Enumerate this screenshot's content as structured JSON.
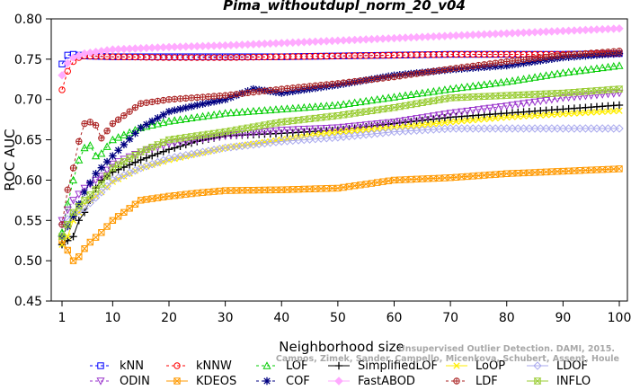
{
  "chart_data": {
    "type": "line",
    "title": "Pima_withoutdupl_norm_20_v04",
    "xlabel": "Neighborhood size",
    "ylabel": "ROC AUC",
    "xlim": [
      1,
      100
    ],
    "ylim": [
      0.45,
      0.8
    ],
    "x_ticks": [
      "1",
      "10",
      "20",
      "30",
      "40",
      "50",
      "60",
      "70",
      "80",
      "90",
      "100"
    ],
    "y_ticks": [
      "0.45",
      "0.50",
      "0.55",
      "0.60",
      "0.65",
      "0.70",
      "0.75",
      "0.80"
    ],
    "grid": false,
    "legend_position": "bottom",
    "series": [
      {
        "name": "kNN",
        "color": "#0000ff",
        "marker": "square",
        "dash": "3,3",
        "anchors": [
          [
            1,
            0.744
          ],
          [
            2,
            0.755
          ],
          [
            3,
            0.756
          ],
          [
            5,
            0.754
          ],
          [
            10,
            0.753
          ],
          [
            20,
            0.753
          ],
          [
            30,
            0.753
          ],
          [
            40,
            0.753
          ],
          [
            50,
            0.754
          ],
          [
            60,
            0.755
          ],
          [
            70,
            0.756
          ],
          [
            80,
            0.756
          ],
          [
            90,
            0.756
          ],
          [
            100,
            0.757
          ]
        ]
      },
      {
        "name": "kNNW",
        "color": "#ff0000",
        "marker": "circle",
        "dash": "3,3",
        "anchors": [
          [
            1,
            0.712
          ],
          [
            2,
            0.735
          ],
          [
            3,
            0.747
          ],
          [
            4,
            0.752
          ],
          [
            5,
            0.754
          ],
          [
            10,
            0.753
          ],
          [
            20,
            0.752
          ],
          [
            30,
            0.752
          ],
          [
            40,
            0.753
          ],
          [
            50,
            0.754
          ],
          [
            60,
            0.755
          ],
          [
            70,
            0.756
          ],
          [
            80,
            0.756
          ],
          [
            90,
            0.756
          ],
          [
            100,
            0.757
          ]
        ]
      },
      {
        "name": "LOF",
        "color": "#00cc00",
        "marker": "triangle",
        "dash": "3,3",
        "anchors": [
          [
            1,
            0.535
          ],
          [
            2,
            0.57
          ],
          [
            3,
            0.6
          ],
          [
            4,
            0.625
          ],
          [
            5,
            0.64
          ],
          [
            6,
            0.643
          ],
          [
            7,
            0.63
          ],
          [
            8,
            0.633
          ],
          [
            10,
            0.65
          ],
          [
            15,
            0.665
          ],
          [
            20,
            0.673
          ],
          [
            30,
            0.683
          ],
          [
            40,
            0.688
          ],
          [
            50,
            0.693
          ],
          [
            60,
            0.703
          ],
          [
            70,
            0.713
          ],
          [
            80,
            0.722
          ],
          [
            90,
            0.733
          ],
          [
            100,
            0.742
          ]
        ]
      },
      {
        "name": "SimplifiedLOF",
        "color": "#000000",
        "marker": "plus",
        "dash": "",
        "anchors": [
          [
            1,
            0.52
          ],
          [
            2,
            0.525
          ],
          [
            3,
            0.53
          ],
          [
            4,
            0.55
          ],
          [
            5,
            0.56
          ],
          [
            6,
            0.575
          ],
          [
            7,
            0.59
          ],
          [
            8,
            0.6
          ],
          [
            10,
            0.61
          ],
          [
            15,
            0.625
          ],
          [
            20,
            0.638
          ],
          [
            25,
            0.648
          ],
          [
            30,
            0.655
          ],
          [
            40,
            0.658
          ],
          [
            50,
            0.662
          ],
          [
            60,
            0.67
          ],
          [
            70,
            0.678
          ],
          [
            80,
            0.683
          ],
          [
            90,
            0.688
          ],
          [
            100,
            0.693
          ]
        ]
      },
      {
        "name": "LoOP",
        "color": "#ffee00",
        "marker": "x",
        "dash": "",
        "anchors": [
          [
            1,
            0.52
          ],
          [
            2,
            0.53
          ],
          [
            3,
            0.55
          ],
          [
            5,
            0.57
          ],
          [
            8,
            0.585
          ],
          [
            10,
            0.598
          ],
          [
            15,
            0.615
          ],
          [
            20,
            0.625
          ],
          [
            30,
            0.64
          ],
          [
            40,
            0.65
          ],
          [
            50,
            0.66
          ],
          [
            60,
            0.665
          ],
          [
            70,
            0.672
          ],
          [
            80,
            0.678
          ],
          [
            90,
            0.682
          ],
          [
            100,
            0.686
          ]
        ]
      },
      {
        "name": "LDOF",
        "color": "#aaaaee",
        "marker": "diamond",
        "dash": "",
        "anchors": [
          [
            1,
            0.545
          ],
          [
            3,
            0.558
          ],
          [
            5,
            0.565
          ],
          [
            8,
            0.585
          ],
          [
            10,
            0.6
          ],
          [
            15,
            0.615
          ],
          [
            20,
            0.627
          ],
          [
            30,
            0.64
          ],
          [
            40,
            0.648
          ],
          [
            50,
            0.653
          ],
          [
            60,
            0.66
          ],
          [
            70,
            0.664
          ],
          [
            80,
            0.664
          ],
          [
            90,
            0.664
          ],
          [
            100,
            0.664
          ]
        ]
      },
      {
        "name": "ODIN",
        "color": "#9933cc",
        "marker": "triangle-down",
        "dash": "3,3",
        "anchors": [
          [
            1,
            0.55
          ],
          [
            2,
            0.563
          ],
          [
            3,
            0.575
          ],
          [
            5,
            0.59
          ],
          [
            8,
            0.605
          ],
          [
            10,
            0.62
          ],
          [
            15,
            0.635
          ],
          [
            20,
            0.645
          ],
          [
            30,
            0.655
          ],
          [
            40,
            0.662
          ],
          [
            50,
            0.665
          ],
          [
            60,
            0.672
          ],
          [
            70,
            0.683
          ],
          [
            80,
            0.692
          ],
          [
            90,
            0.702
          ],
          [
            100,
            0.708
          ]
        ]
      },
      {
        "name": "KDEOS",
        "color": "#ff9900",
        "marker": "square-x",
        "dash": "",
        "anchors": [
          [
            1,
            0.525
          ],
          [
            2,
            0.513
          ],
          [
            3,
            0.5
          ],
          [
            4,
            0.505
          ],
          [
            5,
            0.515
          ],
          [
            6,
            0.523
          ],
          [
            8,
            0.535
          ],
          [
            10,
            0.55
          ],
          [
            12,
            0.56
          ],
          [
            15,
            0.575
          ],
          [
            20,
            0.58
          ],
          [
            25,
            0.584
          ],
          [
            30,
            0.587
          ],
          [
            40,
            0.588
          ],
          [
            50,
            0.59
          ],
          [
            55,
            0.595
          ],
          [
            60,
            0.6
          ],
          [
            70,
            0.603
          ],
          [
            80,
            0.608
          ],
          [
            90,
            0.611
          ],
          [
            100,
            0.614
          ]
        ]
      },
      {
        "name": "COF",
        "color": "#000080",
        "marker": "asterisk",
        "dash": "3,3",
        "anchors": [
          [
            1,
            0.53
          ],
          [
            3,
            0.555
          ],
          [
            5,
            0.585
          ],
          [
            7,
            0.608
          ],
          [
            10,
            0.63
          ],
          [
            15,
            0.665
          ],
          [
            20,
            0.685
          ],
          [
            25,
            0.693
          ],
          [
            30,
            0.7
          ],
          [
            35,
            0.713
          ],
          [
            40,
            0.708
          ],
          [
            50,
            0.718
          ],
          [
            60,
            0.73
          ],
          [
            70,
            0.737
          ],
          [
            80,
            0.742
          ],
          [
            90,
            0.752
          ],
          [
            100,
            0.757
          ]
        ]
      },
      {
        "name": "FastABOD",
        "color": "#ffaaff",
        "marker": "diamond-filled",
        "dash": "",
        "anchors": [
          [
            1,
            0.73
          ],
          [
            2,
            0.745
          ],
          [
            3,
            0.752
          ],
          [
            5,
            0.757
          ],
          [
            10,
            0.762
          ],
          [
            20,
            0.765
          ],
          [
            30,
            0.767
          ],
          [
            40,
            0.77
          ],
          [
            50,
            0.773
          ],
          [
            60,
            0.776
          ],
          [
            70,
            0.779
          ],
          [
            80,
            0.782
          ],
          [
            90,
            0.785
          ],
          [
            100,
            0.788
          ]
        ]
      },
      {
        "name": "LDF",
        "color": "#aa2222",
        "marker": "circle-plus",
        "dash": "3,3",
        "anchors": [
          [
            1,
            0.545
          ],
          [
            2,
            0.588
          ],
          [
            3,
            0.615
          ],
          [
            4,
            0.648
          ],
          [
            5,
            0.67
          ],
          [
            6,
            0.672
          ],
          [
            7,
            0.668
          ],
          [
            8,
            0.652
          ],
          [
            10,
            0.67
          ],
          [
            15,
            0.695
          ],
          [
            20,
            0.7
          ],
          [
            30,
            0.705
          ],
          [
            40,
            0.713
          ],
          [
            50,
            0.72
          ],
          [
            60,
            0.728
          ],
          [
            70,
            0.738
          ],
          [
            80,
            0.747
          ],
          [
            90,
            0.755
          ],
          [
            100,
            0.76
          ]
        ]
      },
      {
        "name": "INFLO",
        "color": "#99cc33",
        "marker": "hourglass",
        "dash": "",
        "anchors": [
          [
            1,
            0.53
          ],
          [
            2,
            0.545
          ],
          [
            3,
            0.56
          ],
          [
            5,
            0.575
          ],
          [
            8,
            0.595
          ],
          [
            10,
            0.615
          ],
          [
            15,
            0.635
          ],
          [
            20,
            0.65
          ],
          [
            30,
            0.66
          ],
          [
            40,
            0.672
          ],
          [
            50,
            0.68
          ],
          [
            60,
            0.69
          ],
          [
            70,
            0.702
          ],
          [
            80,
            0.705
          ],
          [
            90,
            0.708
          ],
          [
            100,
            0.713
          ]
        ]
      }
    ]
  },
  "watermark": {
    "line1": "Unsupervised Outlier Detection. DAMI, 2015.",
    "line2": "Campos, Zimek, Sander, Campello, Micenkova, Schubert, Assent, Houle"
  }
}
